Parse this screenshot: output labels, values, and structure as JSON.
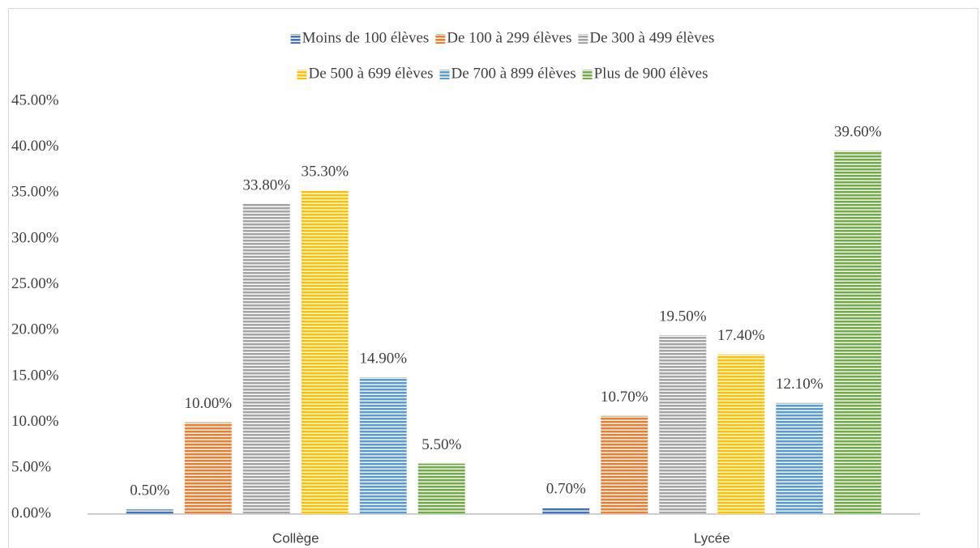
{
  "chart_data": {
    "type": "bar",
    "categories": [
      "Collège",
      "Lycée"
    ],
    "series": [
      {
        "name": "Moins de 100 élèves",
        "color": "#4472c4",
        "values": [
          0.5,
          0.7
        ],
        "value_labels": [
          "0.50%",
          "0.70%"
        ]
      },
      {
        "name": "De 100 à 299 élèves",
        "color": "#ed7d31",
        "values": [
          10.0,
          10.7
        ],
        "value_labels": [
          "10.00%",
          "10.70%"
        ]
      },
      {
        "name": "De 300 à 499 élèves",
        "color": "#a5a5a5",
        "values": [
          33.8,
          19.5
        ],
        "value_labels": [
          "33.80%",
          "19.50%"
        ]
      },
      {
        "name": "De 500 à 699 élèves",
        "color": "#ffc000",
        "values": [
          35.3,
          17.4
        ],
        "value_labels": [
          "35.30%",
          "17.40%"
        ]
      },
      {
        "name": "De 700 à 899 élèves",
        "color": "#5b9bd5",
        "values": [
          14.9,
          12.1
        ],
        "value_labels": [
          "14.90%",
          "12.10%"
        ]
      },
      {
        "name": "Plus de 900 élèves",
        "color": "#70ad47",
        "values": [
          5.5,
          39.6
        ],
        "value_labels": [
          "5.50%",
          "39.60%"
        ]
      }
    ],
    "ylim": [
      0,
      45
    ],
    "yticks": [
      {
        "value": 0,
        "label": "0.00%"
      },
      {
        "value": 5,
        "label": "5.00%"
      },
      {
        "value": 10,
        "label": "10.00%"
      },
      {
        "value": 15,
        "label": "15.00%"
      },
      {
        "value": 20,
        "label": "20.00%"
      },
      {
        "value": 25,
        "label": "25.00%"
      },
      {
        "value": 30,
        "label": "30.00%"
      },
      {
        "value": 35,
        "label": "35.00%"
      },
      {
        "value": 40,
        "label": "40.00%"
      },
      {
        "value": 45,
        "label": "45.00%"
      }
    ],
    "grid": false,
    "legend": "top"
  }
}
